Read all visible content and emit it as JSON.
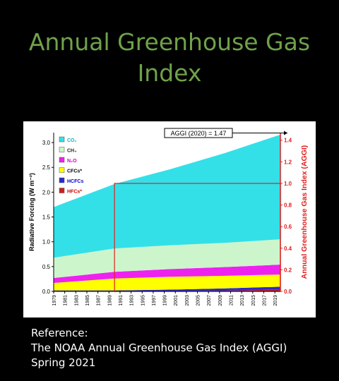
{
  "slide": {
    "title_line1": "Annual Greenhouse Gas",
    "title_line2": "Index",
    "reference_heading": "Reference:",
    "reference_line1": "The NOAA Annual Greenhouse Gas Index (AGGI)",
    "reference_line2": "Spring 2021"
  },
  "chart_data": {
    "type": "area",
    "stacked": true,
    "title": "",
    "xlabel": "",
    "ylabel": "Radiative Forcing (W m⁻²)",
    "y2label": "Annual Greenhouse Gas Index (AGGI)",
    "ylim": [
      0,
      3.2
    ],
    "y2lim": [
      0,
      1.47
    ],
    "yticks": [
      "0.0",
      "0.5",
      "1.0",
      "1.5",
      "2.0",
      "2.5",
      "3.0"
    ],
    "y2ticks": [
      "0.0",
      "0.2",
      "0.4",
      "0.6",
      "0.8",
      "1.0",
      "1.2",
      "1.4"
    ],
    "xticks": [
      "1979",
      "1981",
      "1983",
      "1985",
      "1987",
      "1989",
      "1991",
      "1993",
      "1995",
      "1997",
      "1999",
      "2001",
      "2003",
      "2005",
      "2007",
      "2009",
      "2011",
      "2013",
      "2015",
      "2017",
      "2019"
    ],
    "x": [
      1979,
      1990,
      2000,
      2010,
      2020
    ],
    "series": [
      {
        "name": "HFCs*",
        "color": "#cc1f1f",
        "values": [
          0.0,
          0.0,
          0.005,
          0.015,
          0.035
        ]
      },
      {
        "name": "HCFCs",
        "color": "#2a2ad0",
        "values": [
          0.02,
          0.02,
          0.03,
          0.045,
          0.06
        ]
      },
      {
        "name": "CFCs*",
        "color": "#ffff00",
        "values": [
          0.15,
          0.24,
          0.26,
          0.255,
          0.245
        ]
      },
      {
        "name": "N₂O",
        "color": "#ee22ee",
        "values": [
          0.1,
          0.135,
          0.155,
          0.175,
          0.2
        ]
      },
      {
        "name": "CH₄",
        "color": "#ccf5cc",
        "values": [
          0.41,
          0.47,
          0.48,
          0.49,
          0.51
        ]
      },
      {
        "name": "CO₂",
        "color": "#33e0e8",
        "values": [
          1.02,
          1.3,
          1.53,
          1.81,
          2.11
        ]
      }
    ],
    "legend_position": "top-left",
    "legend_order": [
      "CO₂",
      "CH₄",
      "N₂O",
      "CFCs*",
      "HCFCs",
      "HFCs*"
    ],
    "legend_label_colors": {
      "CO₂": "#00b8c4",
      "CH₄": "#222222",
      "N₂O": "#cc00cc",
      "CFCs*": "#000000",
      "HCFCs": "#0000cc",
      "HFCs*": "#cc0000"
    },
    "reference_box": {
      "x_start": 1990,
      "aggi_value": 1.0,
      "color": "#e02020"
    },
    "annotation": {
      "text": "AGGI (2020) = 1.47",
      "x": 2020,
      "aggi": 1.47
    },
    "grid": false
  }
}
